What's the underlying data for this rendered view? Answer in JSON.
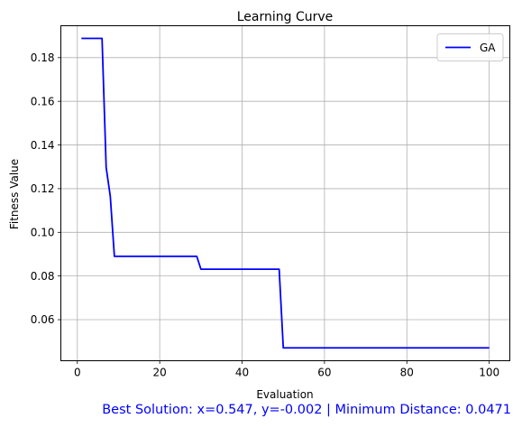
{
  "chart_data": {
    "type": "line",
    "title": "Learning Curve",
    "xlabel": "Evaluation",
    "ylabel": "Fitness Value",
    "xlim": [
      -4,
      105
    ],
    "ylim": [
      0.0412,
      0.1946
    ],
    "x_ticks": [
      0,
      20,
      40,
      60,
      80,
      100
    ],
    "y_ticks": [
      0.06,
      0.08,
      0.1,
      0.12,
      0.14,
      0.16,
      0.18
    ],
    "y_tick_labels": [
      "0.06",
      "0.08",
      "0.10",
      "0.12",
      "0.14",
      "0.16",
      "0.18"
    ],
    "grid": true,
    "legend_position": "top-right",
    "series": [
      {
        "name": "GA",
        "color": "#0000ff",
        "x": [
          1,
          6,
          7,
          8,
          9,
          29,
          30,
          49,
          50,
          100
        ],
        "y": [
          0.1888,
          0.1888,
          0.1297,
          0.1165,
          0.089,
          0.089,
          0.0831,
          0.0831,
          0.0471,
          0.0471
        ]
      }
    ],
    "annotation": {
      "text": "Best Solution: x=0.547, y=-0.002 | Minimum Distance: 0.0471",
      "color": "#0000ff"
    }
  }
}
